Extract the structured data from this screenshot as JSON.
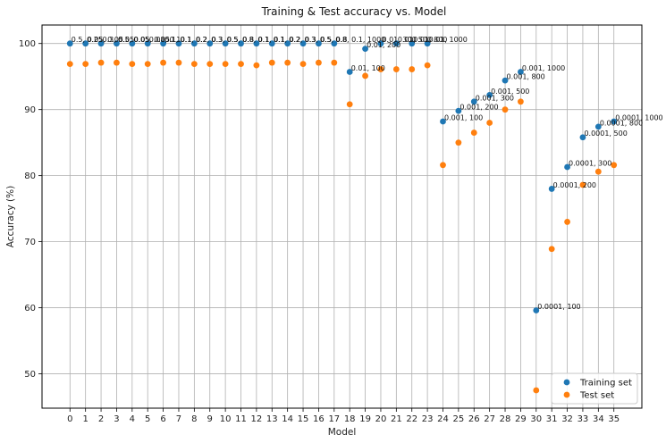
{
  "chart_data": {
    "type": "scatter",
    "title": "Training & Test accuracy vs. Model",
    "xlabel": "Model",
    "ylabel": "Accuracy (%)",
    "x": [
      0,
      1,
      2,
      3,
      4,
      5,
      6,
      7,
      8,
      9,
      10,
      11,
      12,
      13,
      14,
      15,
      16,
      17,
      18,
      19,
      20,
      21,
      22,
      23,
      24,
      25,
      26,
      27,
      28,
      29,
      30,
      31,
      32,
      33,
      34,
      35
    ],
    "xlim": [
      -1.8,
      36.8
    ],
    "ylim": [
      44.8,
      102.8
    ],
    "yticks": [
      50,
      60,
      70,
      80,
      90,
      100
    ],
    "grid": true,
    "legend_position": "lower-right",
    "series": [
      {
        "name": "Training set",
        "color": "#1f77b4",
        "values": [
          100,
          100,
          100,
          100,
          100,
          100,
          100,
          100,
          100,
          100,
          100,
          100,
          100,
          100,
          100,
          100,
          100,
          100,
          95.7,
          99.2,
          100,
          100,
          100,
          100,
          88.2,
          89.8,
          91.2,
          92.2,
          94.4,
          95.7,
          59.6,
          78.0,
          81.3,
          85.8,
          87.4,
          88.2
        ]
      },
      {
        "name": "Test set",
        "color": "#ff7f0e",
        "values": [
          96.9,
          96.9,
          97.1,
          97.1,
          96.9,
          96.9,
          97.1,
          97.1,
          96.9,
          96.9,
          96.9,
          96.9,
          96.7,
          97.1,
          97.1,
          96.9,
          97.1,
          97.1,
          90.8,
          95.1,
          96.1,
          96.1,
          96.1,
          96.7,
          81.6,
          85.0,
          86.5,
          88.0,
          90.0,
          91.2,
          47.5,
          68.9,
          73.0,
          78.6,
          80.6,
          81.6
        ]
      }
    ],
    "annotations": [
      "0.5, 0.05",
      "0.25, 0.05",
      "0.3, 0.05",
      "0.5, 0.05",
      "0.05, 0.05",
      "0.08, 0.1",
      "0.1, 0.1",
      "0.1, 0.2",
      "0.2, 0.3",
      "0.3, 0.5",
      "0.5, 0.8",
      "0.8, 0.1",
      "0.1, 0.1",
      "0.1, 0.2",
      "0.2, 0.3",
      "0.3, 0.5",
      "0.5, 0.8",
      "0.8, 0.1, 1000",
      "0.01, 100",
      "0.01, 200",
      "0.01, 300",
      "0.01, 500",
      "0.01, 800",
      "0.01, 1000",
      "0.001, 100",
      "0.001, 200",
      "0.001, 300",
      "0.001, 500",
      "0.001, 800",
      "0.001, 1000",
      "0.0001, 100",
      "0.0001, 200",
      "0.0001, 300",
      "0.0001, 500",
      "0.0001, 800",
      "0.0001, 1000"
    ]
  }
}
